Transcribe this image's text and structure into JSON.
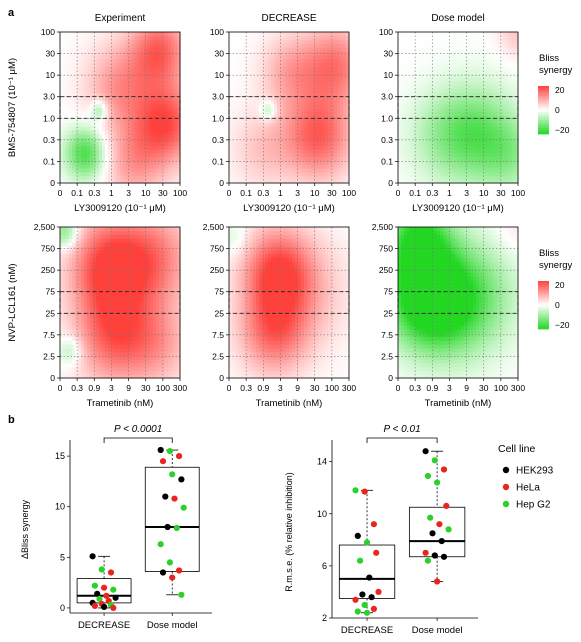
{
  "panel_a_label": "a",
  "panel_b_label": "b",
  "colors": {
    "red": "#e8261f",
    "green": "#2bd02b",
    "black": "#000000",
    "box": "#000000"
  },
  "chart_data": [
    {
      "type": "heatmap",
      "panel": "a-top",
      "col_titles": [
        "Experiment",
        "DECREASE",
        "Dose model"
      ],
      "ylabel": "BMS-754807 (10⁻¹ μM)",
      "xlabel": "LY3009120 (10⁻¹ μM)",
      "x_ticks": [
        "0",
        "0.1",
        "0.3",
        "1",
        "3",
        "10",
        "30",
        "100"
      ],
      "y_ticks": [
        "0",
        "0.1",
        "0.3",
        "1.0",
        "3.0",
        "10",
        "30",
        "100"
      ],
      "highlight_y": [
        "1.0",
        "3.0"
      ],
      "colorbar": {
        "title": [
          "Bliss",
          "synergy"
        ],
        "ticks": [
          "20",
          "0",
          "−20"
        ],
        "range": [
          -20,
          20
        ]
      },
      "maps": [
        {
          "name": "Experiment",
          "blobs": [
            {
              "x": 6.2,
              "y": 2.8,
              "v": 18,
              "s": 1.3
            },
            {
              "x": 5.8,
              "y": 6.2,
              "v": 16,
              "s": 1.2
            },
            {
              "x": 3.5,
              "y": 4.5,
              "v": 11,
              "s": 1.4
            },
            {
              "x": 4.3,
              "y": 1.0,
              "v": 10,
              "s": 1.3
            },
            {
              "x": 1.5,
              "y": 1.4,
              "v": -17,
              "s": 0.85
            },
            {
              "x": 2.3,
              "y": 3.4,
              "v": -11,
              "s": 0.35
            }
          ]
        },
        {
          "name": "DECREASE",
          "blobs": [
            {
              "x": 5.2,
              "y": 2.2,
              "v": 17,
              "s": 1.4
            },
            {
              "x": 6.2,
              "y": 5.5,
              "v": 14,
              "s": 1.3
            },
            {
              "x": 3.6,
              "y": 5.2,
              "v": 9,
              "s": 1.2
            },
            {
              "x": 2.0,
              "y": 1.6,
              "v": 6,
              "s": 1.3
            },
            {
              "x": 2.3,
              "y": 3.4,
              "v": -9,
              "s": 0.35
            }
          ]
        },
        {
          "name": "Dose model",
          "blobs": [
            {
              "x": 4.6,
              "y": 2.3,
              "v": -13,
              "s": 1.6
            },
            {
              "x": 2.5,
              "y": 2.2,
              "v": -6,
              "s": 1.5
            },
            {
              "x": 6.6,
              "y": 1.3,
              "v": -7,
              "s": 1.2
            },
            {
              "x": 7.0,
              "y": 7.0,
              "v": 6,
              "s": 0.8
            }
          ]
        }
      ]
    },
    {
      "type": "heatmap",
      "panel": "a-bottom",
      "col_titles": [
        "",
        "",
        ""
      ],
      "ylabel": "NVP-LCL161 (nM)",
      "xlabel": "Trametinib (nM)",
      "x_ticks": [
        "0",
        "0.3",
        "0.9",
        "3",
        "9",
        "30",
        "100",
        "300"
      ],
      "y_ticks": [
        "0",
        "2.5",
        "7.5",
        "25",
        "75",
        "250",
        "750",
        "2,500"
      ],
      "highlight_y": [
        "25",
        "75"
      ],
      "colorbar": {
        "title": [
          "Bliss",
          "synergy"
        ],
        "ticks": [
          "20",
          "0",
          "−20"
        ],
        "range": [
          -20,
          20
        ]
      },
      "maps": [
        {
          "name": "Experiment",
          "blobs": [
            {
              "x": 2.9,
              "y": 5.2,
              "v": 20,
              "s": 1.6
            },
            {
              "x": 3.2,
              "y": 2.0,
              "v": 16,
              "s": 1.6
            },
            {
              "x": 5.6,
              "y": 5.6,
              "v": 12,
              "s": 1.6
            },
            {
              "x": 5.8,
              "y": 1.6,
              "v": 8,
              "s": 1.4
            },
            {
              "x": 0.3,
              "y": 6.8,
              "v": -12,
              "s": 0.55
            },
            {
              "x": 0.6,
              "y": 1.3,
              "v": -8,
              "s": 0.5
            }
          ]
        },
        {
          "name": "DECREASE",
          "blobs": [
            {
              "x": 2.8,
              "y": 5.0,
              "v": 18,
              "s": 1.4
            },
            {
              "x": 2.6,
              "y": 2.2,
              "v": 15,
              "s": 1.4
            },
            {
              "x": 4.6,
              "y": 4.0,
              "v": 6,
              "s": 1.8
            },
            {
              "x": 0.3,
              "y": 6.5,
              "v": -4,
              "s": 0.6
            }
          ]
        },
        {
          "name": "Dose model",
          "blobs": [
            {
              "x": 1.6,
              "y": 3.8,
              "v": -22,
              "s": 1.6
            },
            {
              "x": 1.2,
              "y": 6.5,
              "v": -18,
              "s": 1.3
            },
            {
              "x": 3.2,
              "y": 3.5,
              "v": -12,
              "s": 1.8
            },
            {
              "x": 5.0,
              "y": 4.0,
              "v": -6,
              "s": 1.8
            },
            {
              "x": 7.0,
              "y": 7.0,
              "v": 3,
              "s": 1.0
            }
          ]
        }
      ]
    },
    {
      "type": "box",
      "panel": "b-left",
      "categories": [
        "DECREASE",
        "Dose model"
      ],
      "ylabel": "ΔBliss synergy",
      "ylim": [
        -0.5,
        16
      ],
      "y_ticks": [
        0,
        5,
        10,
        15
      ],
      "significance": "P < 0.0001",
      "boxes": [
        {
          "q1": 0.5,
          "median": 1.2,
          "q3": 2.9,
          "whisker_low": 0.0,
          "whisker_high": 5.1
        },
        {
          "q1": 3.6,
          "median": 8.0,
          "q3": 13.9,
          "whisker_low": 1.3,
          "whisker_high": 15.6
        }
      ],
      "points": [
        [
          {
            "v": 5.1,
            "c": "black"
          },
          {
            "v": 3.8,
            "c": "green"
          },
          {
            "v": 3.5,
            "c": "red"
          },
          {
            "v": 2.2,
            "c": "green"
          },
          {
            "v": 2.0,
            "c": "red"
          },
          {
            "v": 1.8,
            "c": "green"
          },
          {
            "v": 1.4,
            "c": "black"
          },
          {
            "v": 1.2,
            "c": "red"
          },
          {
            "v": 1.0,
            "c": "black"
          },
          {
            "v": 0.9,
            "c": "green"
          },
          {
            "v": 0.7,
            "c": "red"
          },
          {
            "v": 0.5,
            "c": "black"
          },
          {
            "v": 0.4,
            "c": "red"
          },
          {
            "v": 0.3,
            "c": "green"
          },
          {
            "v": 0.2,
            "c": "red"
          },
          {
            "v": 0.1,
            "c": "black"
          },
          {
            "v": 0.0,
            "c": "red"
          }
        ],
        [
          {
            "v": 15.6,
            "c": "black"
          },
          {
            "v": 15.5,
            "c": "green"
          },
          {
            "v": 15.0,
            "c": "red"
          },
          {
            "v": 14.5,
            "c": "red"
          },
          {
            "v": 13.2,
            "c": "green"
          },
          {
            "v": 12.7,
            "c": "black"
          },
          {
            "v": 11.0,
            "c": "black"
          },
          {
            "v": 10.8,
            "c": "red"
          },
          {
            "v": 9.9,
            "c": "green"
          },
          {
            "v": 8.0,
            "c": "black"
          },
          {
            "v": 7.9,
            "c": "green"
          },
          {
            "v": 6.3,
            "c": "green"
          },
          {
            "v": 4.5,
            "c": "green"
          },
          {
            "v": 3.7,
            "c": "red"
          },
          {
            "v": 3.5,
            "c": "black"
          },
          {
            "v": 3.0,
            "c": "red"
          },
          {
            "v": 1.3,
            "c": "green"
          }
        ]
      ]
    },
    {
      "type": "box",
      "panel": "b-right",
      "categories": [
        "DECREASE",
        "Dose model"
      ],
      "ylabel": "R.m.s.e. (% relative inhibition)",
      "ylim": [
        2,
        15.2
      ],
      "y_ticks": [
        2,
        6,
        10,
        14
      ],
      "significance": "P < 0.01",
      "boxes": [
        {
          "q1": 3.5,
          "median": 5.0,
          "q3": 7.6,
          "whisker_low": 2.4,
          "whisker_high": 11.8
        },
        {
          "q1": 6.7,
          "median": 7.9,
          "q3": 10.5,
          "whisker_low": 4.8,
          "whisker_high": 14.8
        }
      ],
      "points": [
        [
          {
            "v": 11.8,
            "c": "green"
          },
          {
            "v": 11.7,
            "c": "red"
          },
          {
            "v": 9.2,
            "c": "red"
          },
          {
            "v": 8.3,
            "c": "black"
          },
          {
            "v": 7.8,
            "c": "green"
          },
          {
            "v": 7.0,
            "c": "red"
          },
          {
            "v": 6.4,
            "c": "green"
          },
          {
            "v": 5.1,
            "c": "black"
          },
          {
            "v": 4.0,
            "c": "red"
          },
          {
            "v": 3.8,
            "c": "black"
          },
          {
            "v": 3.6,
            "c": "black"
          },
          {
            "v": 3.4,
            "c": "red"
          },
          {
            "v": 3.0,
            "c": "green"
          },
          {
            "v": 2.7,
            "c": "red"
          },
          {
            "v": 2.5,
            "c": "green"
          },
          {
            "v": 2.4,
            "c": "green"
          }
        ],
        [
          {
            "v": 14.8,
            "c": "black"
          },
          {
            "v": 14.1,
            "c": "green"
          },
          {
            "v": 13.4,
            "c": "red"
          },
          {
            "v": 12.9,
            "c": "green"
          },
          {
            "v": 12.4,
            "c": "green"
          },
          {
            "v": 10.6,
            "c": "red"
          },
          {
            "v": 9.7,
            "c": "green"
          },
          {
            "v": 9.2,
            "c": "red"
          },
          {
            "v": 8.8,
            "c": "green"
          },
          {
            "v": 8.5,
            "c": "black"
          },
          {
            "v": 7.9,
            "c": "black"
          },
          {
            "v": 7.0,
            "c": "red"
          },
          {
            "v": 6.8,
            "c": "black"
          },
          {
            "v": 6.7,
            "c": "black"
          },
          {
            "v": 6.4,
            "c": "green"
          },
          {
            "v": 4.8,
            "c": "red"
          }
        ]
      ]
    }
  ],
  "legend": {
    "title": "Cell line",
    "items": [
      {
        "label": "HEK293",
        "color": "#000000"
      },
      {
        "label": "HeLa",
        "color": "#e8261f"
      },
      {
        "label": "Hep G2",
        "color": "#2bd02b"
      }
    ]
  }
}
